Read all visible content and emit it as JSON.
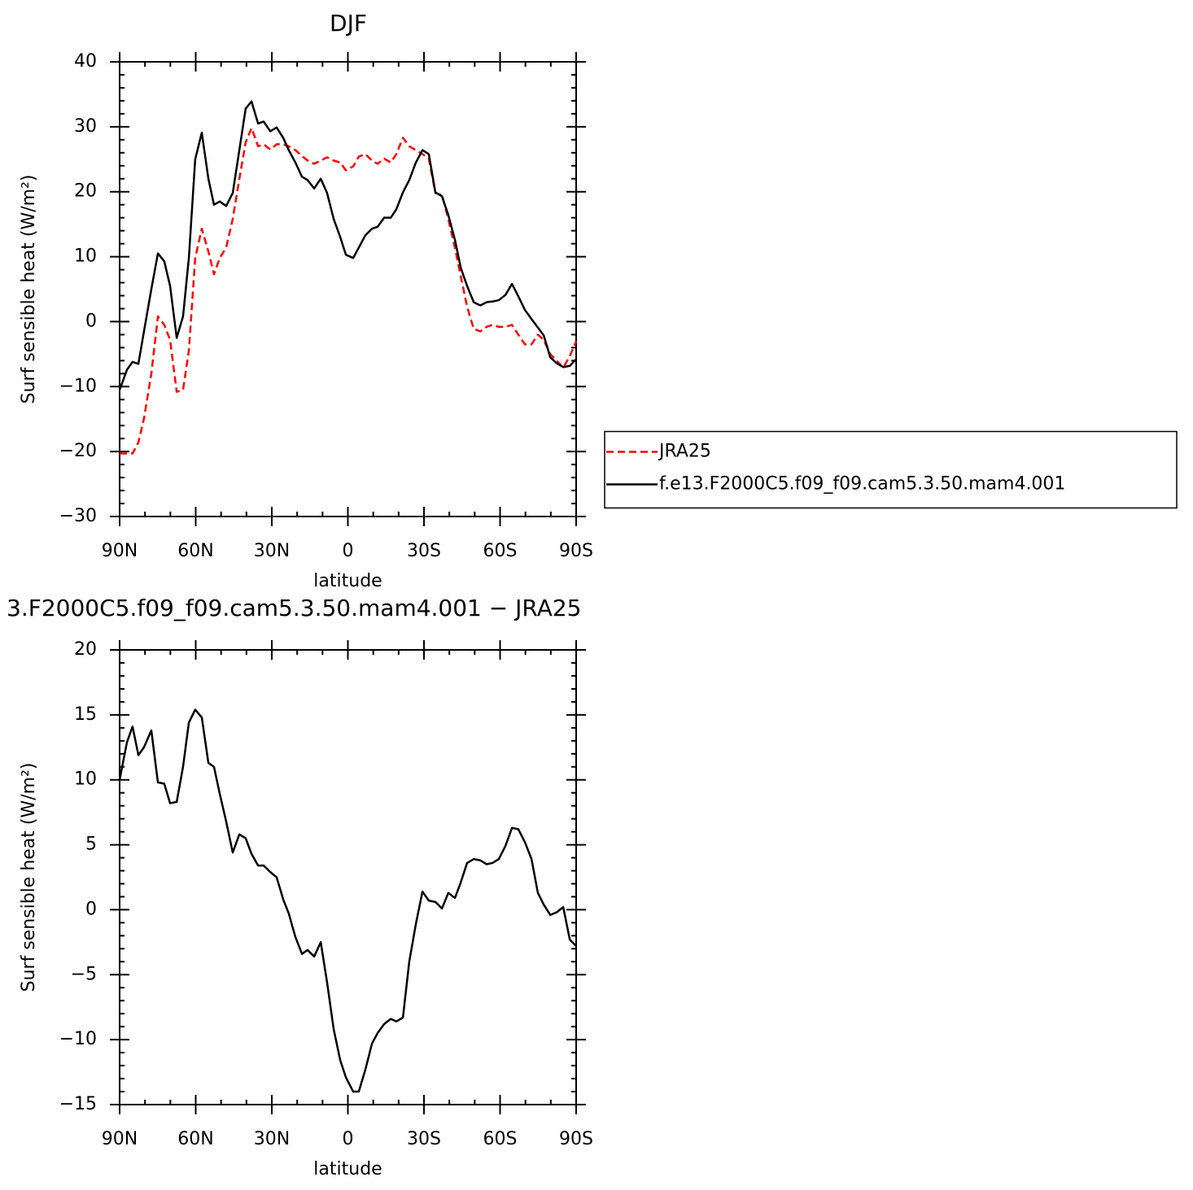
{
  "chart_data": [
    {
      "type": "line",
      "title": "DJF",
      "xlabel": "latitude",
      "ylabel": "Surf sensible heat (W/m²)",
      "x": [
        90,
        87.1,
        84.9,
        82.6,
        80.4,
        77.5,
        74.9,
        72.4,
        70.1,
        67.5,
        65,
        62.7,
        60.2,
        57.6,
        55,
        52.8,
        50.5,
        48,
        45.4,
        42.8,
        40.3,
        38,
        35.4,
        33.2,
        30.6,
        28.1,
        25.5,
        23.3,
        20.7,
        18.1,
        15.9,
        13.3,
        10.7,
        8.2,
        5.6,
        3,
        0.8,
        -2.1,
        -4.3,
        -6.9,
        -9.5,
        -11.7,
        -14.3,
        -16.9,
        -19.1,
        -21.7,
        -24.2,
        -26.8,
        -29.4,
        -31.9,
        -34.5,
        -37.1,
        -39.6,
        -42.2,
        -44.5,
        -47,
        -49.6,
        -52.2,
        -54.7,
        -57,
        -59.5,
        -62.1,
        -64.7,
        -67.2,
        -69.8,
        -72.4,
        -74.9,
        -77.2,
        -79.8,
        -82.3,
        -84.9,
        -87.5,
        -90
      ],
      "series": [
        {
          "name": "JRA25",
          "color": "#ff0000",
          "linestyle": "dashed",
          "values": [
            -20.3,
            -20.3,
            -20.3,
            -18.6,
            -14.9,
            -8,
            0.8,
            -0.5,
            -2.8,
            -10.8,
            -10.5,
            -4.5,
            9.8,
            14.3,
            10.8,
            7.3,
            9.8,
            11.4,
            15.8,
            22,
            27.6,
            29.8,
            27,
            27.3,
            26.5,
            27.3,
            27.3,
            27,
            26.4,
            25.5,
            24.8,
            24.3,
            24.8,
            25.3,
            24.8,
            24.5,
            23.3,
            23.9,
            25.4,
            25.8,
            24.8,
            24.3,
            25.1,
            24.5,
            25.8,
            28.3,
            27,
            26.4,
            25.8,
            25.1,
            19.8,
            19.5,
            15.8,
            11.4,
            7,
            2.3,
            -1.1,
            -1.5,
            -0.8,
            -0.5,
            -0.8,
            -0.8,
            -0.5,
            -2,
            -3.5,
            -3.5,
            -2,
            -2.8,
            -5,
            -6,
            -7.1,
            -5.3,
            -3
          ]
        },
        {
          "name": "f.e13.F2000C5.f09_f09.cam5.3.50.mam4.001",
          "color": "#000000",
          "linestyle": "solid",
          "values": [
            -10.5,
            -7.4,
            -6.2,
            -6.5,
            -1.5,
            5,
            10.5,
            9.3,
            5.5,
            -2.5,
            0.8,
            9.8,
            25,
            29.1,
            22,
            18,
            18.5,
            17.8,
            19.8,
            26.4,
            32.8,
            33.9,
            30.5,
            30.8,
            29.3,
            29.9,
            28.3,
            26.4,
            24.5,
            22.3,
            21.8,
            20.5,
            22,
            19.8,
            15.8,
            13,
            10.3,
            9.8,
            11.4,
            13.3,
            14.3,
            14.6,
            16,
            16,
            17.3,
            19.9,
            21.8,
            24.5,
            26.4,
            25.8,
            19.9,
            19.3,
            16.4,
            12.6,
            8.3,
            5.5,
            3,
            2.5,
            3,
            3.1,
            3.3,
            4.1,
            5.8,
            3.9,
            1.8,
            0.4,
            -0.9,
            -2.1,
            -5.5,
            -6.4,
            -7,
            -6.8,
            -5.8
          ]
        }
      ],
      "xlim": [
        90,
        -90
      ],
      "xticks": [
        {
          "value": 90,
          "label": "90N"
        },
        {
          "value": 60,
          "label": "60N"
        },
        {
          "value": 30,
          "label": "30N"
        },
        0,
        {
          "value": -30,
          "label": "30S"
        },
        {
          "value": -60,
          "label": "60S"
        },
        {
          "value": -90,
          "label": "90S"
        }
      ],
      "ylim": [
        -30,
        40
      ],
      "yticks": [
        {
          "value": -30,
          "label": "−30"
        },
        {
          "value": -20,
          "label": "−20"
        },
        {
          "value": -10,
          "label": "−10"
        },
        0,
        10,
        20,
        30,
        40
      ],
      "legend": "right"
    },
    {
      "type": "line",
      "title": "3.F2000C5.f09_f09.cam5.3.50.mam4.001 − JRA25",
      "xlabel": "latitude",
      "ylabel": "Surf sensible heat (W/m²)",
      "x": [
        90,
        87.1,
        84.9,
        82.6,
        80.4,
        77.5,
        74.9,
        72.4,
        70.1,
        67.5,
        65,
        62.7,
        60.2,
        57.6,
        55,
        52.8,
        50.5,
        48,
        45.4,
        42.8,
        40.3,
        38,
        35.4,
        33.2,
        30.6,
        28.1,
        25.5,
        23.3,
        20.7,
        18.1,
        15.9,
        13.3,
        10.7,
        8.2,
        5.6,
        3,
        0.8,
        -2.1,
        -4.3,
        -6.9,
        -9.5,
        -11.7,
        -14.3,
        -16.9,
        -19.1,
        -21.7,
        -24.2,
        -26.8,
        -29.4,
        -31.9,
        -34.5,
        -37.1,
        -39.6,
        -42.2,
        -44.5,
        -47,
        -49.6,
        -52.2,
        -54.7,
        -57,
        -59.5,
        -62.1,
        -64.7,
        -67.2,
        -69.8,
        -72.4,
        -74.9,
        -77.2,
        -79.8,
        -82.3,
        -84.9,
        -87.5,
        -90
      ],
      "series": [
        {
          "color": "#000000",
          "linestyle": "solid",
          "values": [
            10,
            12.9,
            14.1,
            11.9,
            12.5,
            13.8,
            9.8,
            9.7,
            8.2,
            8.3,
            11,
            14.4,
            15.4,
            14.8,
            11.3,
            11,
            8.9,
            6.8,
            4.4,
            5.8,
            5.5,
            4.3,
            3.4,
            3.4,
            2.9,
            2.5,
            0.8,
            -0.3,
            -2.1,
            -3.4,
            -3.1,
            -3.6,
            -2.5,
            -5.6,
            -9.2,
            -11.6,
            -12.9,
            -14,
            -14,
            -12.3,
            -10.3,
            -9.5,
            -8.8,
            -8.4,
            -8.6,
            -8.3,
            -4,
            -1.1,
            1.4,
            0.7,
            0.6,
            0.1,
            1.3,
            0.9,
            2.1,
            3.6,
            3.9,
            3.8,
            3.5,
            3.6,
            3.9,
            4.9,
            6.3,
            6.2,
            5.2,
            3.9,
            1.3,
            0.4,
            -0.4,
            -0.2,
            0.2,
            -2.3,
            -2.8
          ]
        }
      ],
      "xlim": [
        90,
        -90
      ],
      "xticks": [
        {
          "value": 90,
          "label": "90N"
        },
        {
          "value": 60,
          "label": "60N"
        },
        {
          "value": 30,
          "label": "30N"
        },
        0,
        {
          "value": -30,
          "label": "30S"
        },
        {
          "value": -60,
          "label": "60S"
        },
        {
          "value": -90,
          "label": "90S"
        }
      ],
      "ylim": [
        -15,
        20
      ],
      "yticks": [
        {
          "value": -15,
          "label": "−15"
        },
        {
          "value": -10,
          "label": "−10"
        },
        {
          "value": -5,
          "label": "−5"
        },
        0,
        5,
        10,
        15,
        20
      ]
    }
  ]
}
